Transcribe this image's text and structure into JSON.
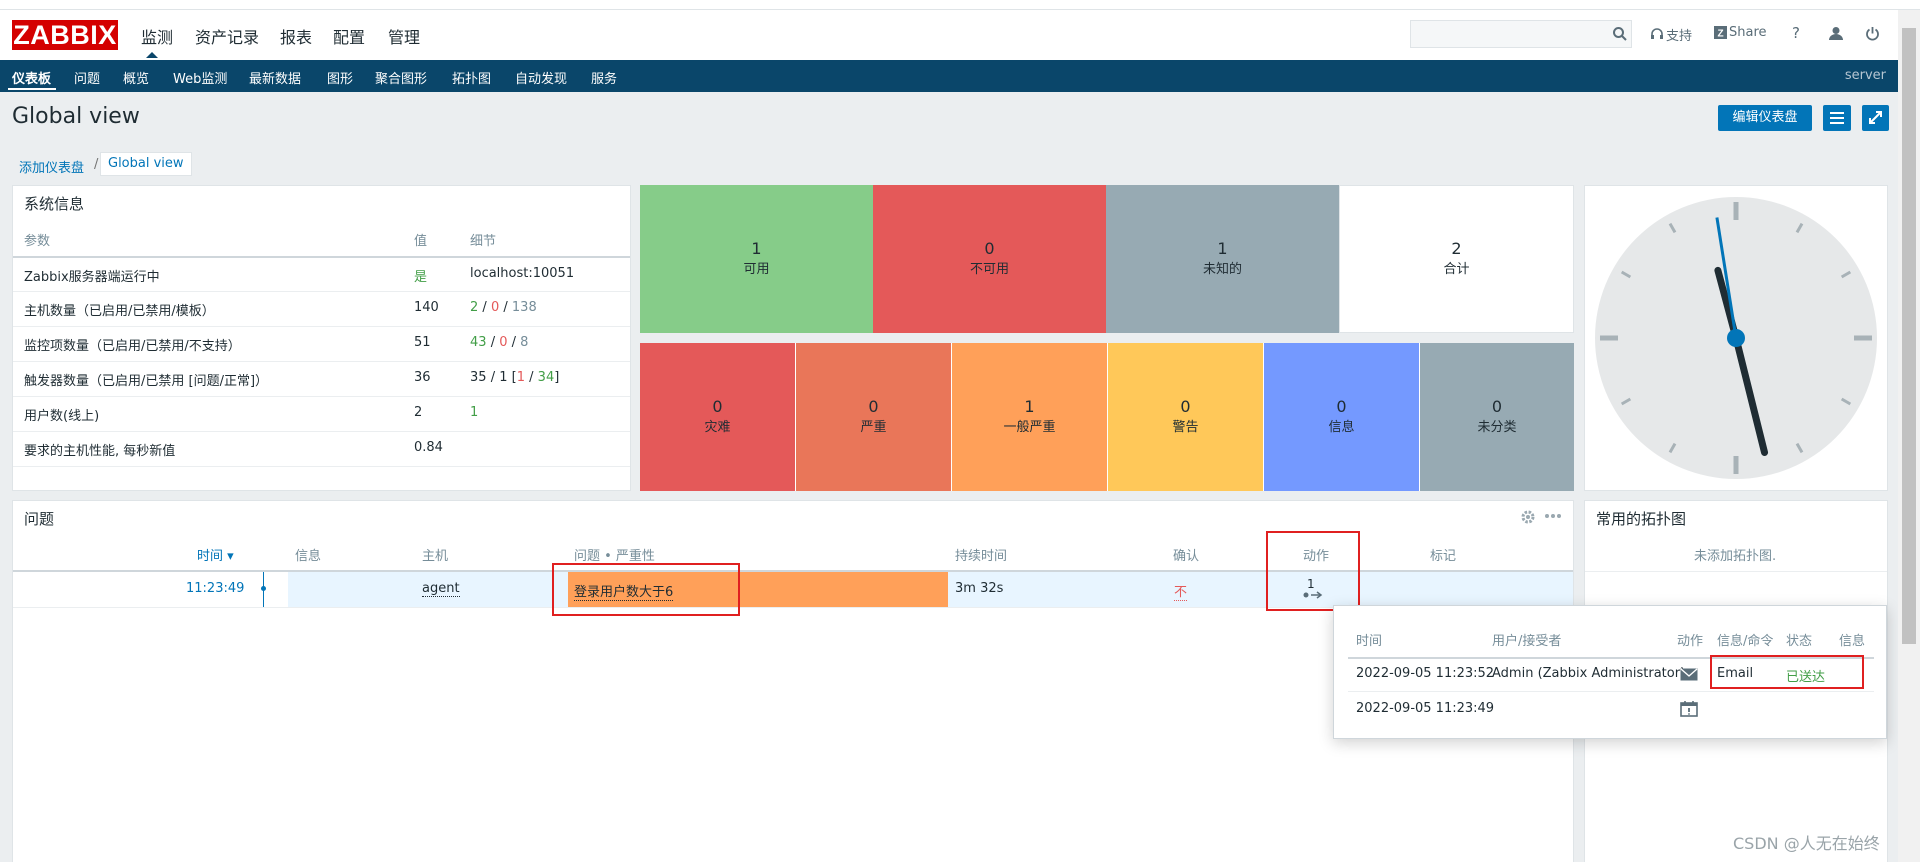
{
  "app": {
    "logo": "ZABBIX"
  },
  "main_menu": [
    {
      "label": "监测"
    },
    {
      "label": "资产记录"
    },
    {
      "label": "报表"
    },
    {
      "label": "配置"
    },
    {
      "label": "管理"
    }
  ],
  "header_links": {
    "support": "支持",
    "share": "Share",
    "help": "?"
  },
  "sub_nav": {
    "items": [
      "仪表板",
      "问题",
      "概览",
      "Web监测",
      "最新数据",
      "图形",
      "聚合图形",
      "拓扑图",
      "自动发现",
      "服务"
    ],
    "server": "server"
  },
  "page": {
    "title": "Global view",
    "edit_button": "编辑仪表盘"
  },
  "breadcrumb": {
    "parent": "添加仪表盘",
    "separator": "/",
    "current": "Global view"
  },
  "system_info": {
    "title": "系统信息",
    "headers": [
      "参数",
      "值",
      "细节"
    ],
    "rows": [
      {
        "param": "Zabbix服务器端运行中",
        "value": "是",
        "detail": "localhost:10051"
      },
      {
        "param": "主机数量（已启用/已禁用/模板）",
        "value": "140",
        "d1": "2",
        "d2": "0",
        "d3": "138"
      },
      {
        "param": "监控项数量（已启用/已禁用/不支持）",
        "value": "51",
        "d1": "43",
        "d2": "0",
        "d3": "8"
      },
      {
        "param": "触发器数量（已启用/已禁用 [问题/正常]）",
        "value": "36",
        "d1": "35",
        "d2": "1",
        "d3": "1",
        "d4": "34"
      },
      {
        "param": "用户数(线上)",
        "value": "2",
        "d1": "1"
      },
      {
        "param": "要求的主机性能, 每秒新值",
        "value": "0.84"
      }
    ],
    "sep": "/",
    "bracket_open": "[",
    "bracket_close": "]"
  },
  "host_availability": [
    {
      "count": "1",
      "label": "可用",
      "color": "#86cc89"
    },
    {
      "count": "0",
      "label": "不可用",
      "color": "#e45959"
    },
    {
      "count": "1",
      "label": "未知的",
      "color": "#97aab3"
    },
    {
      "count": "2",
      "label": "合计",
      "color": "#ffffff"
    }
  ],
  "problem_severity": [
    {
      "count": "0",
      "label": "灾难",
      "color": "#e45959"
    },
    {
      "count": "0",
      "label": "严重",
      "color": "#e97659"
    },
    {
      "count": "1",
      "label": "一般严重",
      "color": "#ffa059"
    },
    {
      "count": "0",
      "label": "警告",
      "color": "#ffc859"
    },
    {
      "count": "0",
      "label": "信息",
      "color": "#7499ff"
    },
    {
      "count": "0",
      "label": "未分类",
      "color": "#97aab3"
    }
  ],
  "clock": {
    "hour_angle_deg": -15,
    "minute_angle_deg": -14,
    "second_angle_deg": -9
  },
  "problems": {
    "title": "问题",
    "headers": {
      "time": "时间 ▾",
      "info": "信息",
      "host": "主机",
      "problem": "问题 • 严重性",
      "duration": "持续时间",
      "ack": "确认",
      "actions": "动作",
      "tags": "标记"
    },
    "row": {
      "time": "11:23:49",
      "host": "agent",
      "problem": "登录用户数大于6",
      "duration": "3m 32s",
      "ack": "不",
      "actions": "1"
    }
  },
  "maps": {
    "title": "常用的拓扑图",
    "empty": "未添加拓扑图."
  },
  "action_popup": {
    "headers": [
      "时间",
      "用户/接受者",
      "动作",
      "信息/命令",
      "状态",
      "信息"
    ],
    "rows": [
      {
        "time": "2022-09-05 11:23:52",
        "user": "Admin (Zabbix Administrator)",
        "command": "Email",
        "status": "已送达"
      },
      {
        "time": "2022-09-05 11:23:49"
      }
    ]
  },
  "watermark": "CSDN @人无在始终"
}
